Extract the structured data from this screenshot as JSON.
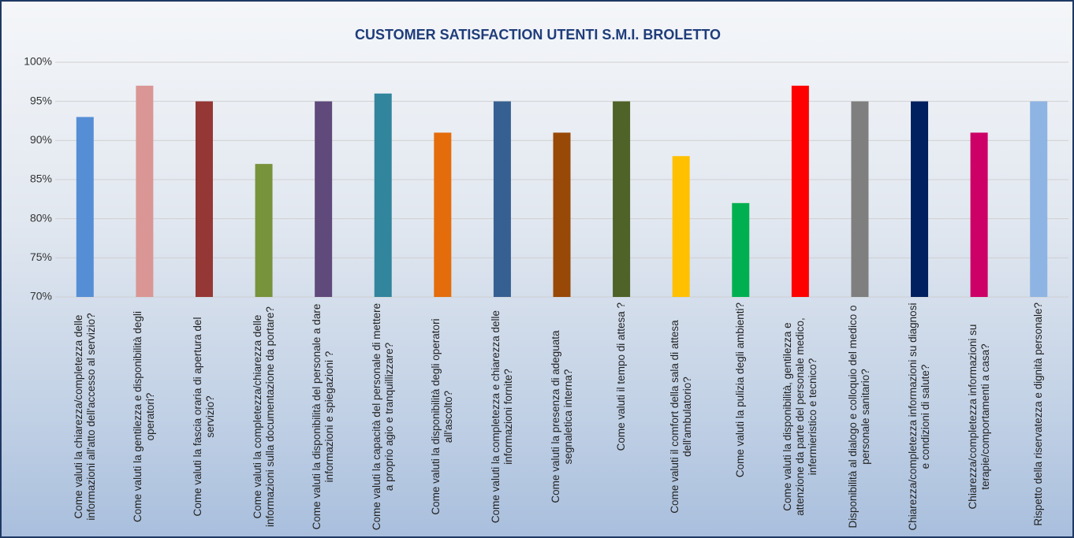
{
  "chart_data": {
    "type": "bar",
    "title": "CUSTOMER SATISFACTION UTENTI S.M.I. BROLETTO",
    "categories": [
      "Come valuti la chiarezza/completezza delle informazioni all'atto dell'accesso al servizio?",
      "Come valuti la gentilezza e disponibilità degli operatori?",
      "Come valuti la fascia oraria di apertura del servizio?",
      "Come valuti la completezza/chiarezza delle informazioni sulla documentazione da portare?",
      "Come valuti la disponibilità del personale a dare informazioni e spiegazioni ?",
      "Come valuti la capacità del personale di mettere a proprio agio e tranquillizzare?",
      "Come valuti la disponibilità degli operatori all'ascolto?",
      "Come valuti la completezza e chiarezza delle informazioni fornite?",
      "Come valuti la presenza di adeguata segnaletica interna?",
      "Come valuti il tempo di attesa ?",
      "Come valuti il comfort della sala di attesa dell'ambulatorio?",
      "Come valuti la pulizia degli ambienti?",
      "Come valuti la disponibilità, gentilezza e attenzione da parte del personale medico, infermieristico e tecnico?",
      "Disponibilità al dialogo e colloquio del medico o personale sanitario?",
      "Chiarezza/completezza informazioni su diagnosi e condizioni di salute?",
      "Chiarezza/completezza informazioni su terapie/comportamenti a casa?",
      "Rispetto della riservatezza e dignità personale?"
    ],
    "values": [
      93,
      97,
      95,
      87,
      95,
      96,
      91,
      95,
      91,
      95,
      88,
      82,
      97,
      95,
      95,
      91,
      95
    ],
    "colors": [
      "#558ed5",
      "#d99694",
      "#953735",
      "#77933c",
      "#604a7b",
      "#31859c",
      "#e46c0a",
      "#376092",
      "#984807",
      "#4f6228",
      "#ffc000",
      "#00b050",
      "#ff0000",
      "#7f7f7f",
      "#002060",
      "#cc0066",
      "#8eb4e3"
    ],
    "ylim": [
      70,
      100
    ],
    "yticks": [
      {
        "value": 70,
        "label": "70%"
      },
      {
        "value": 75,
        "label": "75%"
      },
      {
        "value": 80,
        "label": "80%"
      },
      {
        "value": 85,
        "label": "85%"
      },
      {
        "value": 90,
        "label": "90%"
      },
      {
        "value": 95,
        "label": "95%"
      },
      {
        "value": 100,
        "label": "100%"
      }
    ],
    "grid": true
  }
}
